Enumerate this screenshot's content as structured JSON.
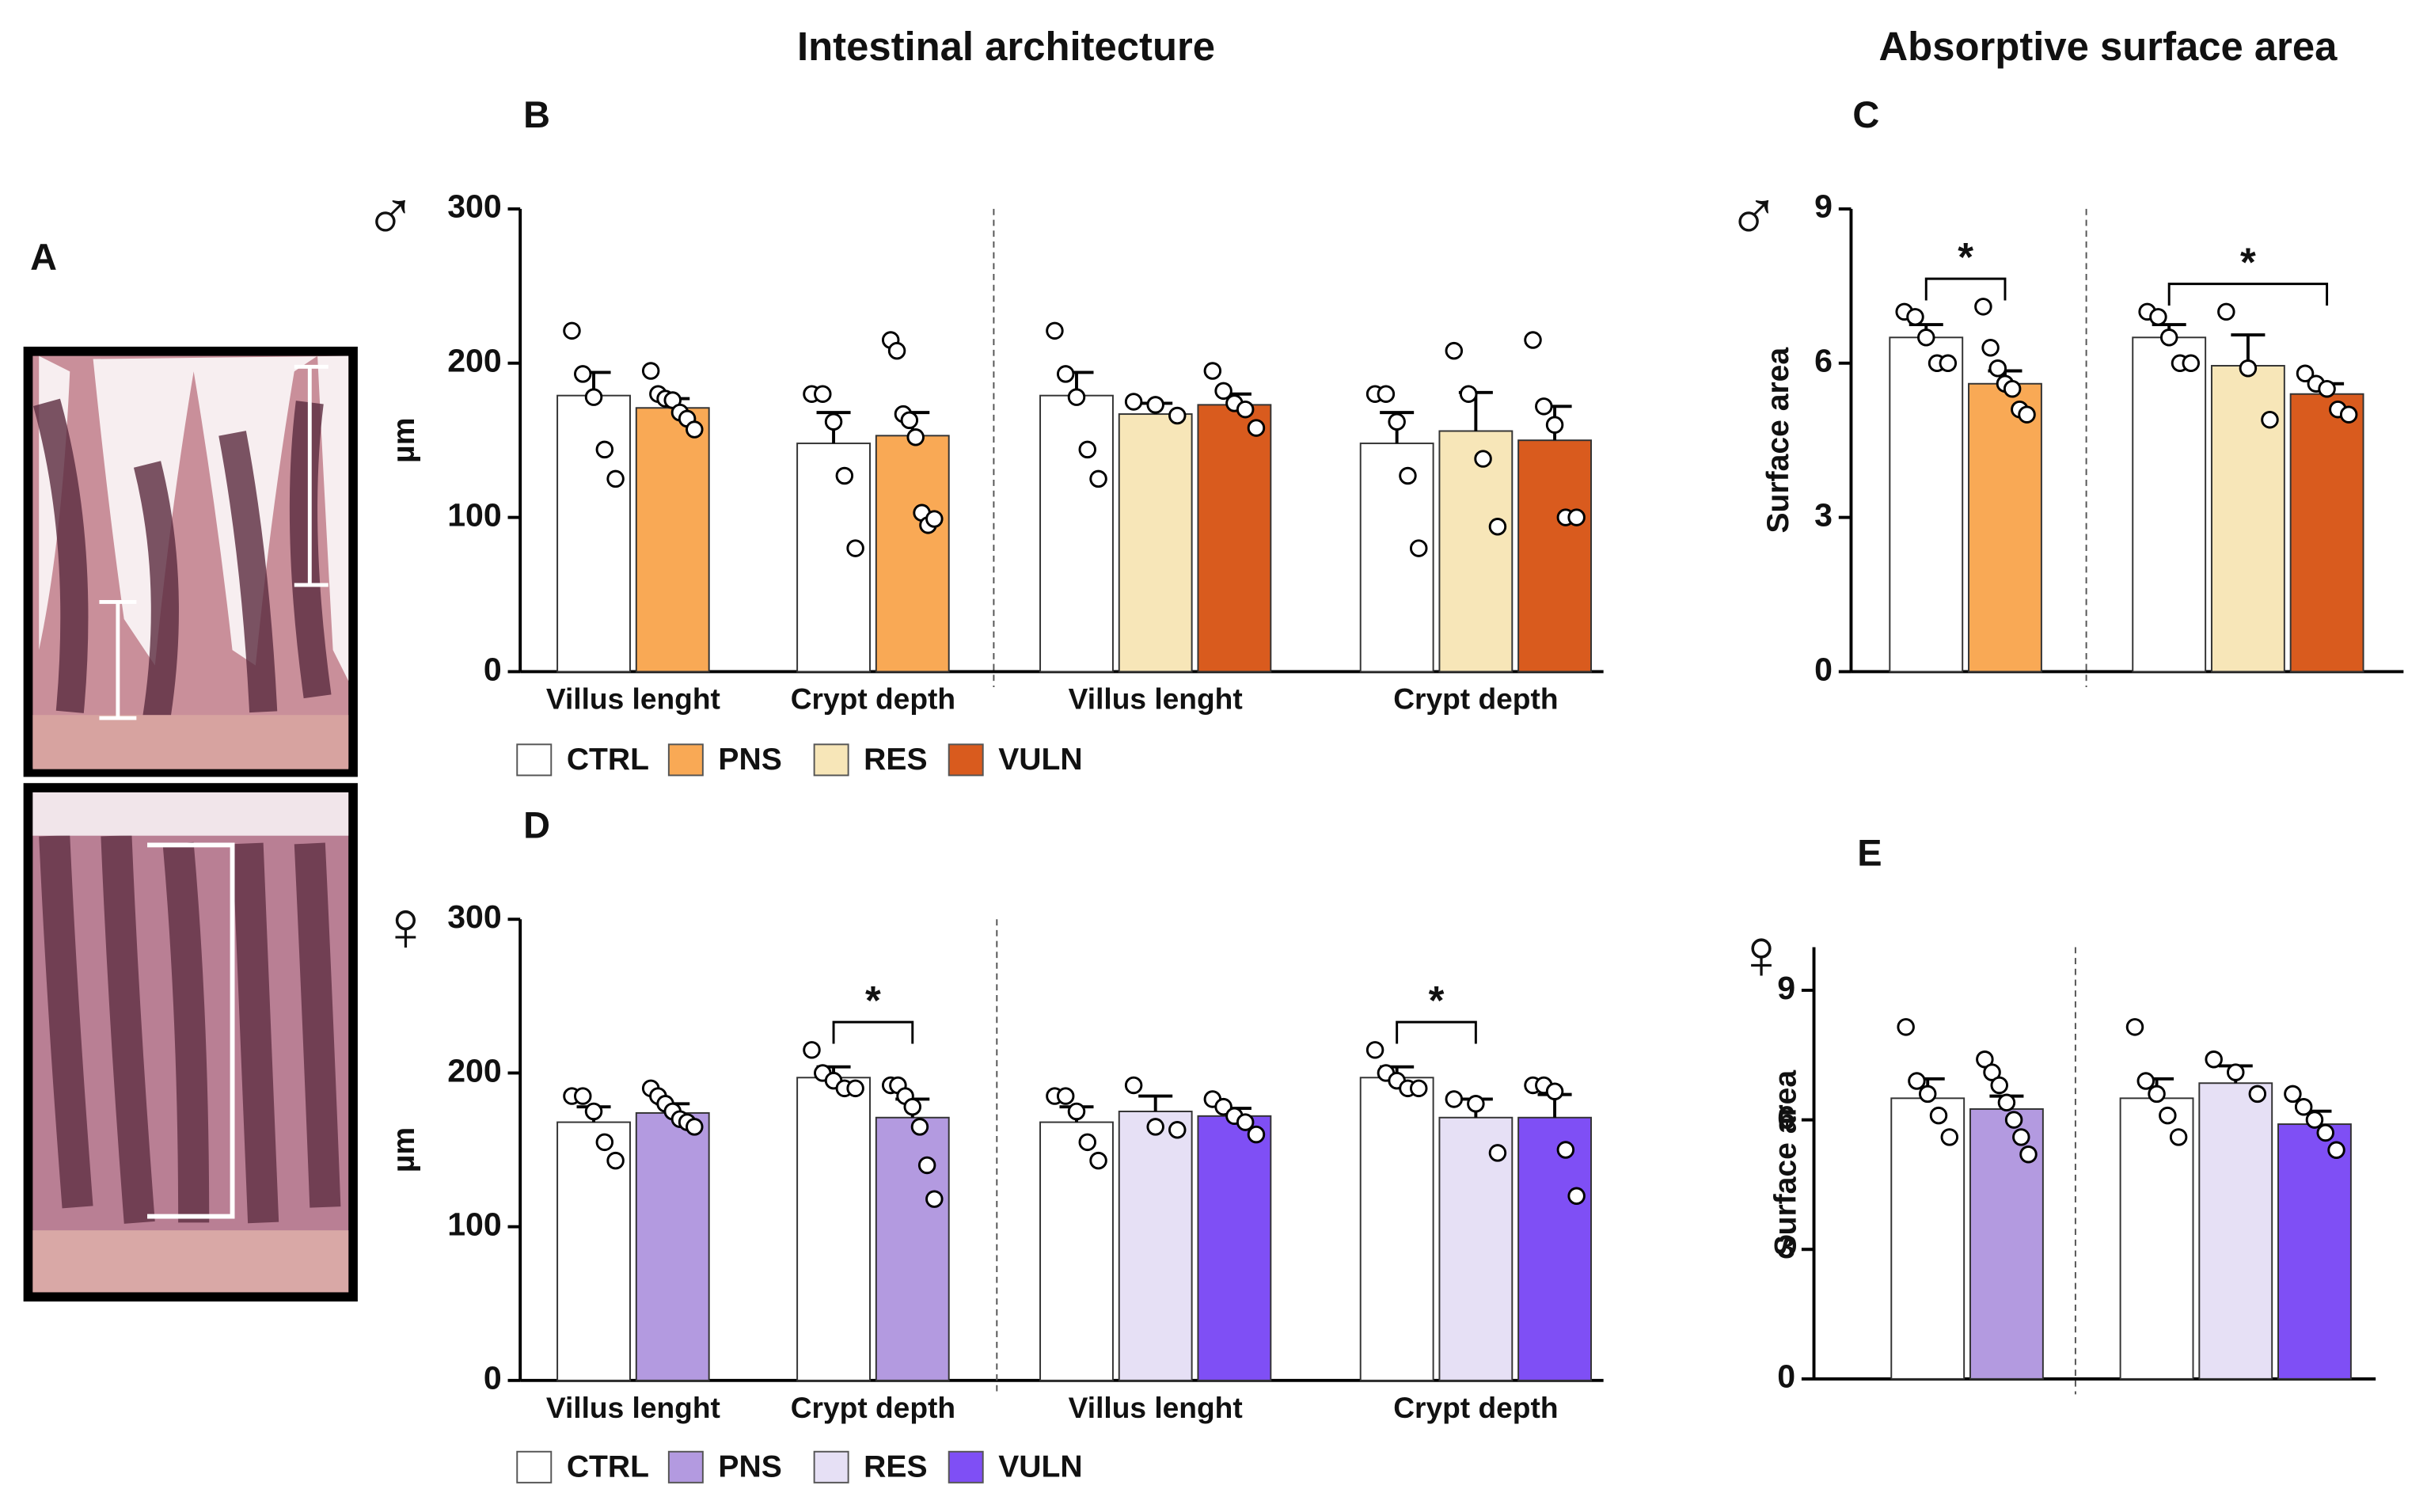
{
  "figure": {
    "title_left": "Intestinal architecture",
    "title_right": "Absorptive surface area",
    "panel_a_label": "A"
  },
  "chart_data": [
    {
      "type": "bar",
      "panel": "B",
      "sex": "♂",
      "ylabel": "µm",
      "ylim": [
        0,
        300
      ],
      "yticks": [
        0,
        100,
        200,
        300
      ],
      "legend": true,
      "categories": [
        "Villus lenght",
        "Crypt depth",
        "Villus lenght",
        "Crypt depth"
      ],
      "series": [
        {
          "name": "CTRL",
          "color": "#ffffff",
          "values": [
            179,
            148,
            179,
            148
          ],
          "errors": [
            15,
            20,
            15,
            20
          ],
          "points": [
            [
              221,
              193,
              178,
              144,
              125
            ],
            [
              180,
              180,
              162,
              127,
              80
            ],
            [
              221,
              193,
              178,
              144,
              125
            ],
            [
              180,
              180,
              162,
              127,
              80
            ]
          ]
        },
        {
          "name": "PNS",
          "color": "#f9a955",
          "values": [
            171,
            153,
            null,
            null
          ],
          "errors": [
            6,
            15,
            null,
            null
          ],
          "points": [
            [
              195,
              180,
              177,
              176,
              168,
              164,
              157
            ],
            [
              215,
              208,
              167,
              163,
              152,
              103,
              95,
              99
            ],
            null,
            null
          ]
        },
        {
          "name": "RES",
          "color": "#f7e6b8",
          "values": [
            null,
            null,
            167,
            156
          ],
          "errors": [
            null,
            null,
            7,
            25
          ],
          "points": [
            null,
            null,
            [
              175,
              173,
              166
            ],
            [
              208,
              180,
              138,
              94
            ]
          ]
        },
        {
          "name": "VULN",
          "color": "#d95b1e",
          "values": [
            null,
            null,
            173,
            150
          ],
          "errors": [
            null,
            null,
            7,
            22
          ],
          "points": [
            null,
            null,
            [
              195,
              182,
              174,
              170,
              158
            ],
            [
              215,
              172,
              160,
              100,
              100
            ]
          ]
        }
      ],
      "brackets": []
    },
    {
      "type": "bar",
      "panel": "C",
      "sex": "♂",
      "ylabel": "Surface area",
      "ylim": [
        0,
        9
      ],
      "yticks": [
        0,
        3,
        6,
        9
      ],
      "legend": false,
      "categories": [
        null,
        null
      ],
      "series": [
        {
          "color": "#ffffff",
          "values": [
            6.5,
            6.5
          ],
          "errors": [
            0.25,
            0.25
          ],
          "points": [
            [
              7.0,
              6.9,
              6.5,
              6.0,
              6.0
            ],
            [
              7.0,
              6.9,
              6.5,
              6.0,
              6.0
            ]
          ]
        },
        {
          "color": "#f9a955",
          "values": [
            5.6,
            null
          ],
          "errors": [
            0.25,
            null
          ],
          "points": [
            [
              7.1,
              6.3,
              5.9,
              5.6,
              5.5,
              5.1,
              5.0
            ],
            null
          ]
        },
        {
          "color": "#f7e6b8",
          "values": [
            null,
            5.95
          ],
          "errors": [
            null,
            0.6
          ],
          "points": [
            null,
            [
              7.0,
              5.9,
              4.9
            ]
          ]
        },
        {
          "color": "#d95b1e",
          "values": [
            null,
            5.4
          ],
          "errors": [
            null,
            0.2
          ],
          "points": [
            null,
            [
              5.8,
              5.6,
              5.5,
              5.1,
              5.0
            ]
          ]
        }
      ],
      "brackets": [
        {
          "category": 0,
          "bars": [
            0,
            1
          ],
          "label": "*"
        },
        {
          "category": 1,
          "bars": [
            0,
            2
          ],
          "label": "*"
        }
      ]
    },
    {
      "type": "bar",
      "panel": "D",
      "sex": "♀",
      "ylabel": "µm",
      "ylim": [
        0,
        300
      ],
      "yticks": [
        0,
        100,
        200,
        300
      ],
      "legend": true,
      "categories": [
        "Villus lenght",
        "Crypt depth",
        "Villus lenght",
        "Crypt depth"
      ],
      "series": [
        {
          "name": "CTRL",
          "color": "#ffffff",
          "values": [
            168,
            197,
            168,
            197
          ],
          "errors": [
            10,
            7,
            10,
            7
          ],
          "points": [
            [
              185,
              185,
              175,
              155,
              143
            ],
            [
              215,
              200,
              195,
              190,
              190
            ],
            [
              185,
              185,
              175,
              155,
              143
            ],
            [
              215,
              200,
              195,
              190,
              190
            ]
          ]
        },
        {
          "name": "PNS",
          "color": "#b39ae0",
          "values": [
            174,
            171,
            null,
            null
          ],
          "errors": [
            6,
            12,
            null,
            null
          ],
          "points": [
            [
              190,
              185,
              180,
              175,
              170,
              168,
              165
            ],
            [
              192,
              192,
              185,
              178,
              165,
              140,
              118
            ],
            null,
            null
          ]
        },
        {
          "name": "RES",
          "color": "#e6e0f5",
          "values": [
            null,
            null,
            175,
            171
          ],
          "errors": [
            null,
            null,
            10,
            12
          ],
          "points": [
            null,
            null,
            [
              192,
              165,
              163
            ],
            [
              183,
              180,
              148
            ]
          ]
        },
        {
          "name": "VULN",
          "color": "#7f4ff5",
          "values": [
            null,
            null,
            172,
            171
          ],
          "errors": [
            null,
            null,
            5,
            15
          ],
          "points": [
            null,
            null,
            [
              183,
              178,
              172,
              168,
              160
            ],
            [
              192,
              192,
              188,
              150,
              120
            ]
          ]
        }
      ],
      "brackets": [
        {
          "category": 1,
          "bars": [
            0,
            1
          ],
          "label": "*"
        },
        {
          "category": 3,
          "bars": [
            0,
            1
          ],
          "label": "*"
        }
      ]
    },
    {
      "type": "bar",
      "panel": "E",
      "sex": "♀",
      "ylabel": "Surface area",
      "ylim": [
        0,
        10
      ],
      "yticks": [
        0,
        3,
        6,
        9
      ],
      "legend": false,
      "categories": [
        null,
        null
      ],
      "series": [
        {
          "color": "#ffffff",
          "values": [
            6.5,
            6.5
          ],
          "errors": [
            0.45,
            0.45
          ],
          "points": [
            [
              8.15,
              6.9,
              6.6,
              6.1,
              5.6
            ],
            [
              8.15,
              6.9,
              6.6,
              6.1,
              5.6
            ]
          ]
        },
        {
          "color": "#b39ae0",
          "values": [
            6.25,
            null
          ],
          "errors": [
            0.3,
            null
          ],
          "points": [
            [
              7.4,
              7.1,
              6.8,
              6.4,
              6.0,
              5.6,
              5.2
            ],
            null
          ]
        },
        {
          "color": "#e6e0f5",
          "values": [
            null,
            6.85
          ],
          "errors": [
            null,
            0.4
          ],
          "points": [
            null,
            [
              7.4,
              7.1,
              6.6
            ]
          ]
        },
        {
          "color": "#7f4ff5",
          "values": [
            null,
            5.9
          ],
          "errors": [
            null,
            0.3
          ],
          "points": [
            null,
            [
              6.6,
              6.3,
              6.0,
              5.7,
              5.3
            ]
          ]
        }
      ],
      "brackets": []
    }
  ]
}
